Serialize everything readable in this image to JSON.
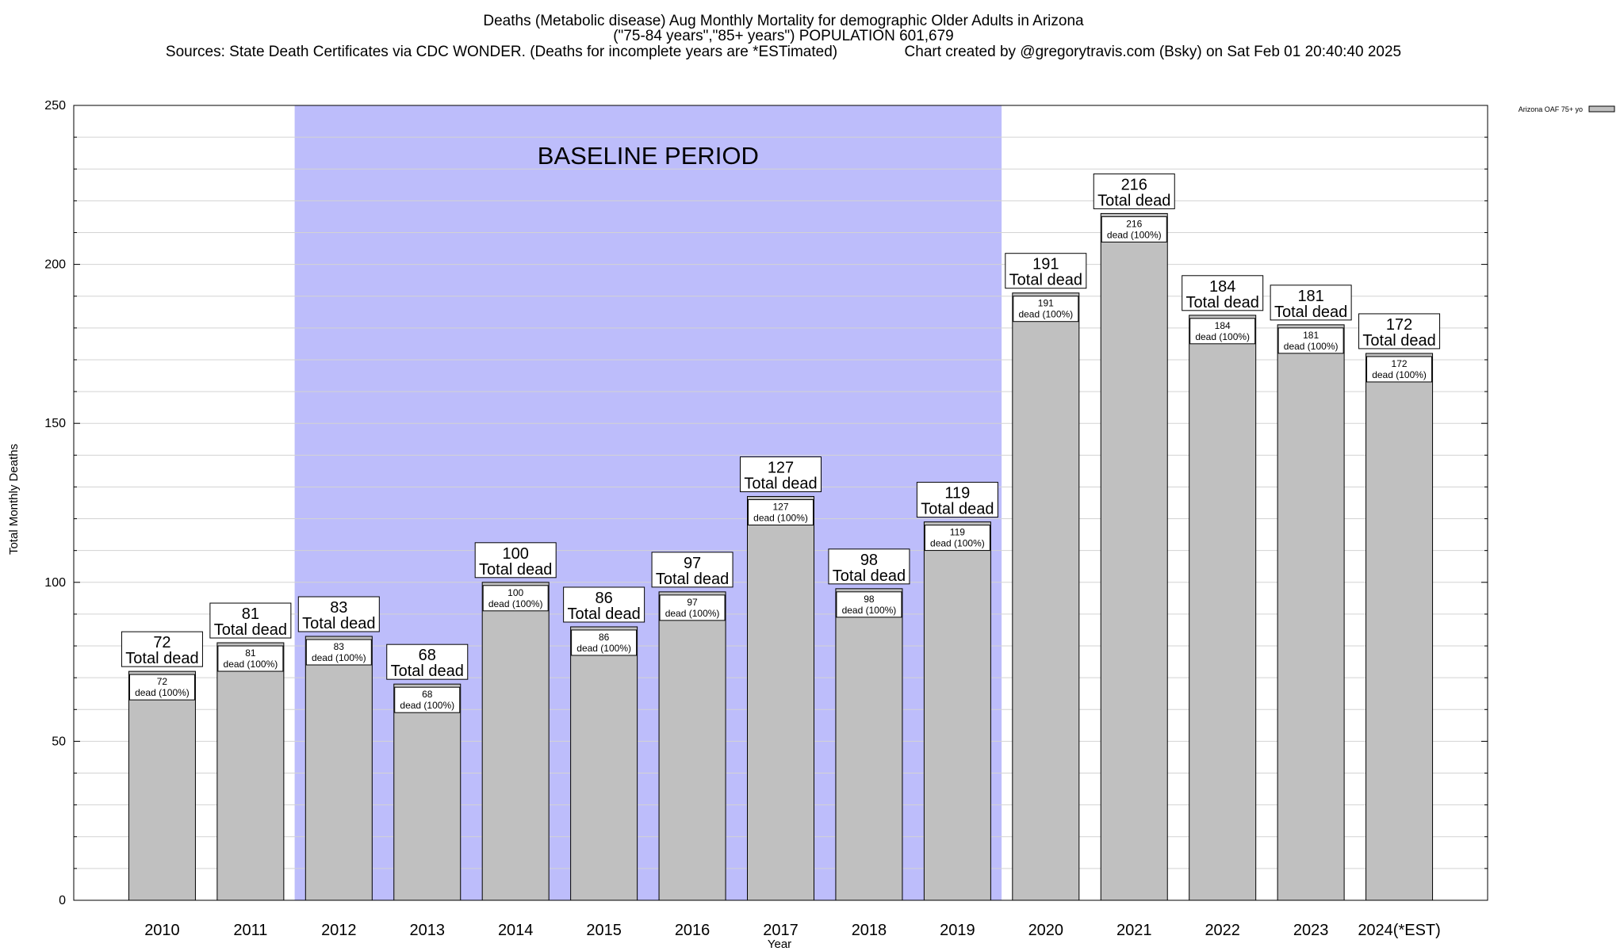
{
  "chart_data": {
    "type": "bar",
    "title_line1": "Deaths (Metabolic disease) Aug Monthly Mortality for demographic Older Adults in Arizona",
    "title_line2": "(\"75-84 years\",\"85+ years\") POPULATION 601,679",
    "title_line3": "Sources: State Death Certificates via CDC WONDER. (Deaths for incomplete years are *ESTimated)                Chart created by @gregorytravis.com (Bsky) on Sat Feb 01 20:40:40 2025",
    "xlabel": "Year",
    "ylabel": "Total Monthly Deaths",
    "ylim": [
      0,
      250
    ],
    "yticks": [
      0,
      50,
      100,
      150,
      200,
      250
    ],
    "ymin_grid_step": 10,
    "categories": [
      "2010",
      "2011",
      "2012",
      "2013",
      "2014",
      "2015",
      "2016",
      "2017",
      "2018",
      "2019",
      "2020",
      "2021",
      "2022",
      "2023",
      "2024(*EST)"
    ],
    "series": [
      {
        "name": "Arizona OAF 75+ yo",
        "values": [
          72,
          81,
          83,
          68,
          100,
          86,
          97,
          127,
          98,
          119,
          191,
          216,
          184,
          181,
          172
        ]
      }
    ],
    "total_label": "Total dead",
    "inner_label": "dead (100%)",
    "baseline": {
      "label": "BASELINE PERIOD",
      "start": "2012",
      "end": "2019"
    },
    "colors": {
      "bar": "#c0c0c0",
      "baseline": "#bdbdfb",
      "grid": "#d3d3d3"
    },
    "legend_position": "top-right"
  }
}
